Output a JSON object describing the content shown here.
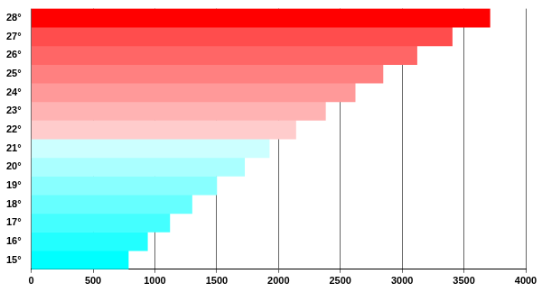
{
  "chart_data": {
    "type": "bar",
    "orientation": "horizontal",
    "categories": [
      "15°",
      "16°",
      "17°",
      "18°",
      "19°",
      "20°",
      "21°",
      "22°",
      "23°",
      "24°",
      "25°",
      "26°",
      "27°",
      "28°"
    ],
    "values": [
      785,
      940,
      1120,
      1300,
      1500,
      1725,
      1925,
      2140,
      2380,
      2620,
      2845,
      3120,
      3405,
      3710
    ],
    "colors": [
      "#00ffff",
      "#22ffff",
      "#44ffff",
      "#66ffff",
      "#88ffff",
      "#aaffff",
      "#ccffff",
      "#ffcccc",
      "#ffb3b3",
      "#ff9999",
      "#ff8080",
      "#ff6666",
      "#ff4d4d",
      "#ff0000"
    ],
    "xlim": [
      0,
      4000
    ],
    "xticks": [
      0,
      500,
      1000,
      1500,
      2000,
      2500,
      3000,
      3500,
      4000
    ],
    "grid": true
  }
}
